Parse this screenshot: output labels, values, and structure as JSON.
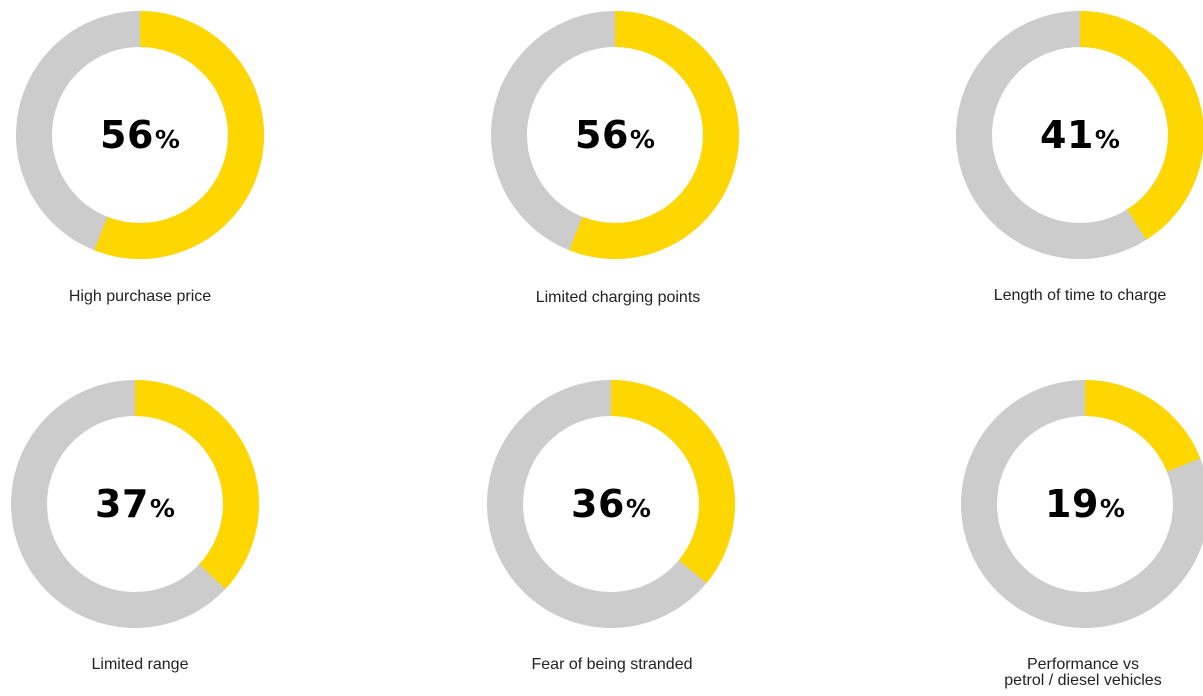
{
  "colors": {
    "filled": "#ffd700",
    "remainder": "#cccccc"
  },
  "chart_data": {
    "type": "pie",
    "series": [
      {
        "label": "High purchase price",
        "value": 56,
        "value_text": "56",
        "unit": "%"
      },
      {
        "label": "Limited charging points",
        "value": 56,
        "value_text": "56",
        "unit": "%"
      },
      {
        "label": "Length of time to charge",
        "value": 41,
        "value_text": "41",
        "unit": "%"
      },
      {
        "label": "Limited range",
        "value": 37,
        "value_text": "37",
        "unit": "%"
      },
      {
        "label": "Fear of being stranded",
        "value": 36,
        "value_text": "36",
        "unit": "%"
      },
      {
        "label": "Performance vs petrol / diesel vehicles",
        "label_lines": [
          "Performance vs",
          "petrol / diesel vehicles"
        ],
        "value": 19,
        "value_text": "19",
        "unit": "%"
      }
    ]
  }
}
